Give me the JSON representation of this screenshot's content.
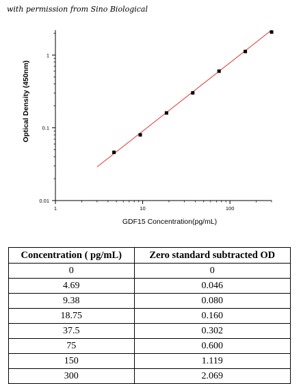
{
  "credit": "with permission from Sino Biological",
  "chart_data": {
    "type": "scatter",
    "xlabel": "GDF15  Concentration(pg/mL)",
    "ylabel": "Optical Density (450nm)",
    "x_scale": "log",
    "y_scale": "log",
    "xlim": [
      1,
      300
    ],
    "ylim": [
      0.01,
      2.2
    ],
    "x_ticks": [
      1,
      10,
      100
    ],
    "x_tick_labels": [
      "1",
      "10",
      "100"
    ],
    "y_ticks": [
      0.01,
      0.1,
      1
    ],
    "y_tick_labels": [
      "0.01",
      "0.1",
      "1"
    ],
    "grid": false,
    "series": [
      {
        "x": [
          4.69,
          9.38,
          18.75,
          37.5,
          75,
          150,
          300
        ],
        "y": [
          0.046,
          0.08,
          0.16,
          0.302,
          0.6,
          1.119,
          2.069
        ]
      }
    ],
    "fit_line": {
      "x": [
        3,
        300
      ],
      "y": [
        0.029,
        2.2
      ]
    },
    "colors": {
      "points": "#000000",
      "fit": "#e0302a",
      "axes": "#000000"
    }
  },
  "table": {
    "headers": [
      "Concentration ( pg/mL)",
      "Zero standard subtracted OD"
    ],
    "rows": [
      [
        "0",
        "0"
      ],
      [
        "4.69",
        "0.046"
      ],
      [
        "9.38",
        "0.080"
      ],
      [
        "18.75",
        "0.160"
      ],
      [
        "37.5",
        "0.302"
      ],
      [
        "75",
        "0.600"
      ],
      [
        "150",
        "1.119"
      ],
      [
        "300",
        "2.069"
      ]
    ]
  }
}
